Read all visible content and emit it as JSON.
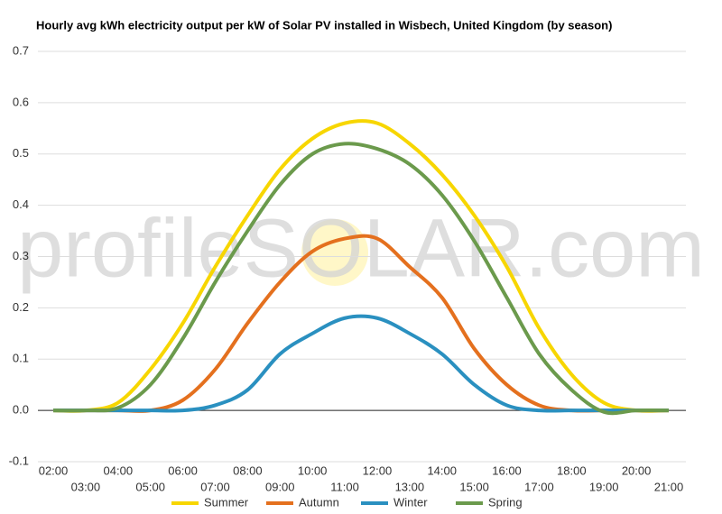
{
  "chart_data": {
    "type": "line",
    "title": "Hourly avg kWh electricity output per kW of Solar PV installed in Wisbech, United Kingdom (by season)",
    "watermark": "profileSOLAR.com",
    "categories": [
      "02:00",
      "03:00",
      "04:00",
      "05:00",
      "06:00",
      "07:00",
      "08:00",
      "09:00",
      "10:00",
      "11:00",
      "12:00",
      "13:00",
      "14:00",
      "15:00",
      "16:00",
      "17:00",
      "18:00",
      "19:00",
      "20:00",
      "21:00"
    ],
    "series": [
      {
        "name": "Summer",
        "color": "#f7d600",
        "values": [
          0,
          0,
          0.015,
          0.08,
          0.17,
          0.28,
          0.38,
          0.47,
          0.53,
          0.56,
          0.56,
          0.52,
          0.46,
          0.38,
          0.28,
          0.16,
          0.07,
          0.015,
          0,
          0
        ]
      },
      {
        "name": "Autumn",
        "color": "#e4701e",
        "values": [
          0,
          0,
          0,
          0,
          0.02,
          0.08,
          0.17,
          0.25,
          0.31,
          0.335,
          0.335,
          0.28,
          0.22,
          0.12,
          0.05,
          0.01,
          0,
          0,
          0,
          0
        ]
      },
      {
        "name": "Winter",
        "color": "#2a90c0",
        "values": [
          0,
          0,
          0,
          0,
          0,
          0.01,
          0.04,
          0.11,
          0.15,
          0.18,
          0.18,
          0.15,
          0.11,
          0.05,
          0.01,
          0,
          0,
          0,
          0,
          0
        ]
      },
      {
        "name": "Spring",
        "color": "#6b9a4c",
        "values": [
          0,
          0,
          0.005,
          0.05,
          0.14,
          0.25,
          0.35,
          0.44,
          0.5,
          0.52,
          0.51,
          0.48,
          0.42,
          0.33,
          0.22,
          0.11,
          0.04,
          -0.003,
          0,
          0
        ]
      }
    ],
    "ylim": [
      -0.1,
      0.7
    ],
    "yticks": [
      -0.1,
      {
        "value": 0,
        "label": "0.0"
      },
      0.1,
      0.2,
      0.3,
      0.4,
      0.5,
      0.6,
      0.7
    ],
    "grid": true
  }
}
